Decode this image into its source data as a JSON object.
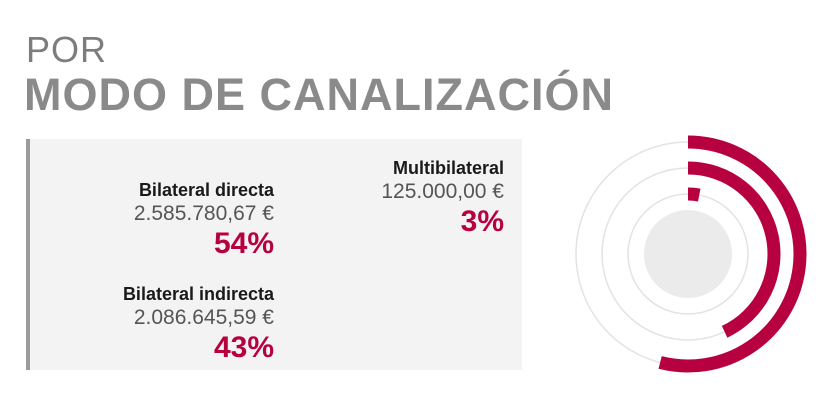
{
  "title": {
    "line1": "POR",
    "line2": "MODO DE CANALIZACIÓN"
  },
  "chart_data": {
    "type": "radial-bar",
    "categories": [
      "Bilateral directa",
      "Bilateral indirecta",
      "Multibilateral"
    ],
    "values": [
      2585780.67,
      2086645.59,
      125000.0
    ],
    "amounts": [
      "2.585.780,67 €",
      "2.086.645,59 €",
      "125.000,00 €"
    ],
    "percents": [
      "54%",
      "43%",
      "3%"
    ],
    "percent_values": [
      54,
      43,
      3
    ]
  },
  "colors": {
    "accent": "#b7003f",
    "track": "#e3e3e4",
    "center": "#ebebec",
    "panel": "#f3f3f4"
  }
}
